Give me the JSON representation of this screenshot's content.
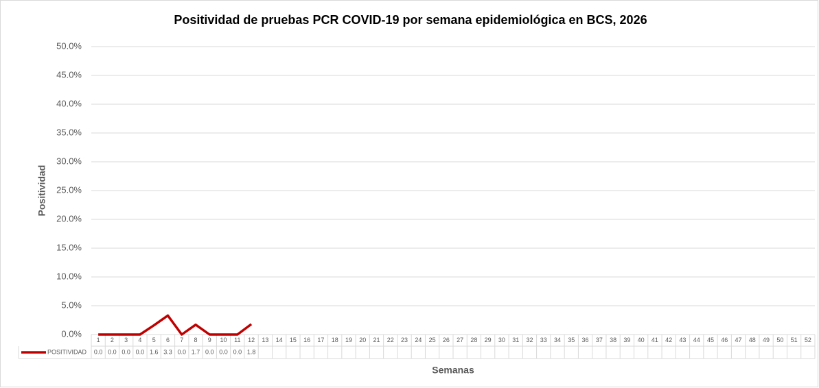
{
  "chart_data": {
    "type": "line",
    "title": "Positividad de pruebas PCR COVID-19 por semana epidemiológica en BCS, 2026",
    "x_label": "Semanas",
    "y_label": "Positividad",
    "categories": [
      "1",
      "2",
      "3",
      "4",
      "5",
      "6",
      "7",
      "8",
      "9",
      "10",
      "11",
      "12",
      "13",
      "14",
      "15",
      "16",
      "17",
      "18",
      "19",
      "20",
      "21",
      "22",
      "23",
      "24",
      "25",
      "26",
      "27",
      "28",
      "29",
      "30",
      "31",
      "32",
      "33",
      "34",
      "35",
      "36",
      "37",
      "38",
      "39",
      "40",
      "41",
      "42",
      "43",
      "44",
      "45",
      "46",
      "47",
      "48",
      "49",
      "50",
      "51",
      "52"
    ],
    "series": [
      {
        "name": "POSITIVIDAD",
        "color": "#c00000",
        "values": [
          0.0,
          0.0,
          0.0,
          0.0,
          1.6,
          3.3,
          0.0,
          1.7,
          0.0,
          0.0,
          0.0,
          1.8,
          null,
          null,
          null,
          null,
          null,
          null,
          null,
          null,
          null,
          null,
          null,
          null,
          null,
          null,
          null,
          null,
          null,
          null,
          null,
          null,
          null,
          null,
          null,
          null,
          null,
          null,
          null,
          null,
          null,
          null,
          null,
          null,
          null,
          null,
          null,
          null,
          null,
          null,
          null,
          null
        ],
        "value_labels": [
          "0.0",
          "0.0",
          "0.0",
          "0.0",
          "1.6",
          "3.3",
          "0.0",
          "1.7",
          "0.0",
          "0.0",
          "0.0",
          "1.8",
          null,
          null,
          null,
          null,
          null,
          null,
          null,
          null,
          null,
          null,
          null,
          null,
          null,
          null,
          null,
          null,
          null,
          null,
          null,
          null,
          null,
          null,
          null,
          null,
          null,
          null,
          null,
          null,
          null,
          null,
          null,
          null,
          null,
          null,
          null,
          null,
          null,
          null,
          null,
          null
        ]
      }
    ],
    "ylim": [
      0,
      50
    ],
    "yticks": [
      {
        "value": 0,
        "label": "0.0%"
      },
      {
        "value": 5,
        "label": "5.0%"
      },
      {
        "value": 10,
        "label": "10.0%"
      },
      {
        "value": 15,
        "label": "15.0%"
      },
      {
        "value": 20,
        "label": "20.0%"
      },
      {
        "value": 25,
        "label": "25.0%"
      },
      {
        "value": 30,
        "label": "30.0%"
      },
      {
        "value": 35,
        "label": "35.0%"
      },
      {
        "value": 40,
        "label": "40.0%"
      },
      {
        "value": 45,
        "label": "45.0%"
      },
      {
        "value": 50,
        "label": "50.0%"
      }
    ],
    "grid": true,
    "data_table": true
  }
}
